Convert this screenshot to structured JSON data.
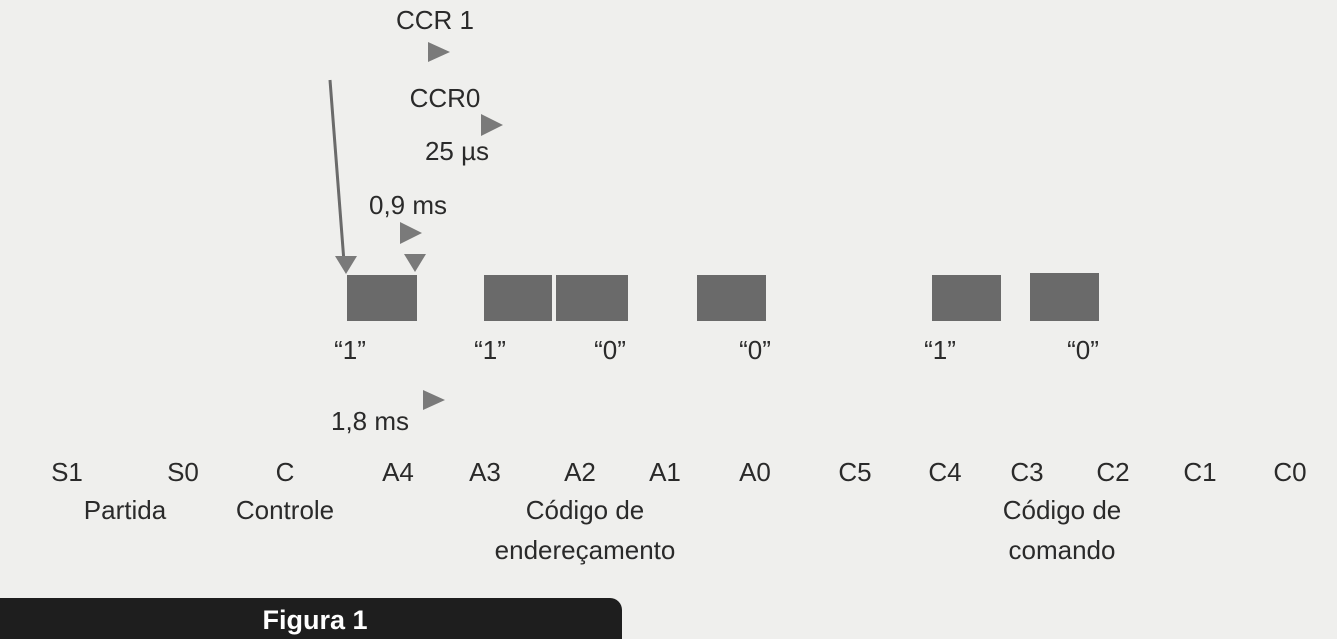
{
  "timing": {
    "ccr1": "CCR 1",
    "ccr0": "CCR0",
    "period": "25 µs",
    "pulse_width": "0,9 ms",
    "bit_time": "1,8 ms"
  },
  "bit_values": [
    "“1”",
    "“1”",
    "“0”",
    "“0”",
    "“1”",
    "“0”"
  ],
  "bit_names": [
    "S1",
    "S0",
    "C",
    "A4",
    "A3",
    "A2",
    "A1",
    "A0",
    "C5",
    "C4",
    "C3",
    "C2",
    "C1",
    "C0"
  ],
  "groups": [
    {
      "lines": [
        "Partida"
      ]
    },
    {
      "lines": [
        "Controle"
      ]
    },
    {
      "lines": [
        "Código de",
        "endereçamento"
      ]
    },
    {
      "lines": [
        "Código de",
        "comando"
      ]
    }
  ],
  "caption": "Figura 1"
}
